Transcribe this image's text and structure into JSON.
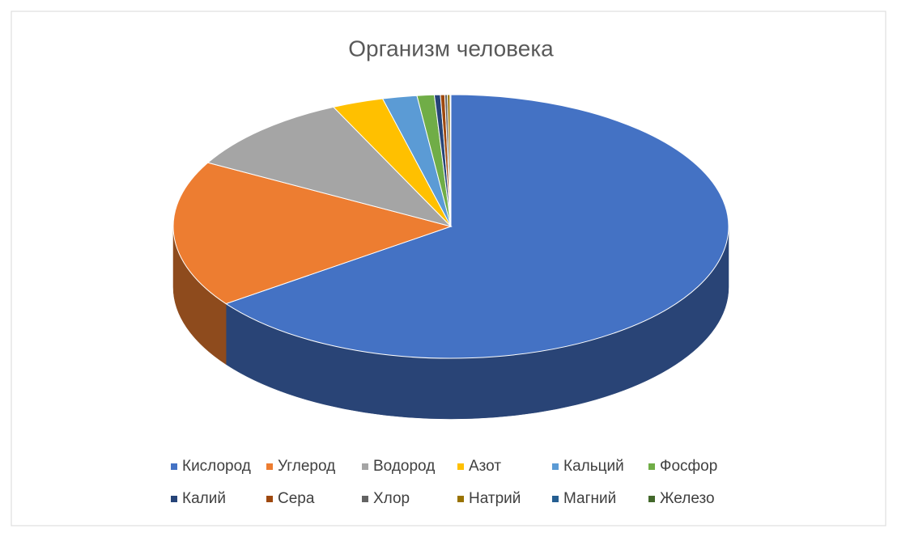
{
  "chart_data": {
    "type": "pie",
    "three_d": true,
    "title": "Организм человека",
    "legend": "bottom",
    "series": [
      {
        "name": "Кислород",
        "color": "#4472c4",
        "values": [
          65
        ]
      },
      {
        "name": "Углерод",
        "color": "#ed7d31",
        "values": [
          18
        ]
      },
      {
        "name": "Водород",
        "color": "#a5a5a5",
        "values": [
          10
        ]
      },
      {
        "name": "Азот",
        "color": "#ffc000",
        "values": [
          3
        ]
      },
      {
        "name": "Кальций",
        "color": "#5b9bd5",
        "values": [
          2
        ]
      },
      {
        "name": "Фосфор",
        "color": "#70ad47",
        "values": [
          1
        ]
      },
      {
        "name": "Калий",
        "color": "#264478",
        "values": [
          0.35
        ]
      },
      {
        "name": "Сера",
        "color": "#9e480e",
        "values": [
          0.25
        ]
      },
      {
        "name": "Хлор",
        "color": "#636363",
        "values": [
          0.15
        ]
      },
      {
        "name": "Натрий",
        "color": "#997300",
        "values": [
          0.15
        ]
      },
      {
        "name": "Магний",
        "color": "#255e91",
        "values": [
          0.05
        ]
      },
      {
        "name": "Железо",
        "color": "#43682b",
        "values": [
          0.004
        ]
      }
    ]
  }
}
